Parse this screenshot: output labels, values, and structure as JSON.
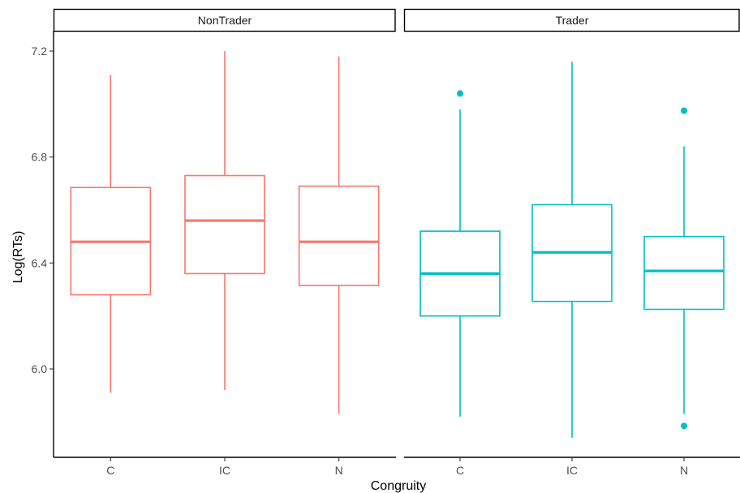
{
  "chart_data": {
    "type": "boxplot",
    "xlabel": "Congruity",
    "ylabel": "Log(RTs)",
    "ylim": [
      5.72,
      7.27
    ],
    "yticks": [
      6.0,
      6.4,
      6.8,
      7.2
    ],
    "ytick_labels": [
      "6.0",
      "6.4",
      "6.8",
      "7.2"
    ],
    "categories": [
      "C",
      "IC",
      "N"
    ],
    "grid": false,
    "legend": "none",
    "panels": [
      {
        "name": "NonTrader",
        "color": "#f8766d",
        "boxes": [
          {
            "category": "C",
            "whisker_low": 5.91,
            "q1": 6.28,
            "median": 6.48,
            "q3": 6.685,
            "whisker_high": 7.11,
            "outliers": []
          },
          {
            "category": "IC",
            "whisker_low": 5.92,
            "q1": 6.36,
            "median": 6.56,
            "q3": 6.73,
            "whisker_high": 7.2,
            "outliers": []
          },
          {
            "category": "N",
            "whisker_low": 5.83,
            "q1": 6.315,
            "median": 6.48,
            "q3": 6.69,
            "whisker_high": 7.18,
            "outliers": []
          }
        ]
      },
      {
        "name": "Trader",
        "color": "#00bfc4",
        "boxes": [
          {
            "category": "C",
            "whisker_low": 5.82,
            "q1": 6.2,
            "median": 6.36,
            "q3": 6.52,
            "whisker_high": 6.98,
            "outliers": [
              7.04
            ]
          },
          {
            "category": "IC",
            "whisker_low": 5.74,
            "q1": 6.255,
            "median": 6.44,
            "q3": 6.62,
            "whisker_high": 7.16,
            "outliers": []
          },
          {
            "category": "N",
            "whisker_low": 5.83,
            "q1": 6.225,
            "median": 6.37,
            "q3": 6.5,
            "whisker_high": 6.84,
            "outliers": [
              6.975,
              5.785
            ]
          }
        ]
      }
    ]
  }
}
